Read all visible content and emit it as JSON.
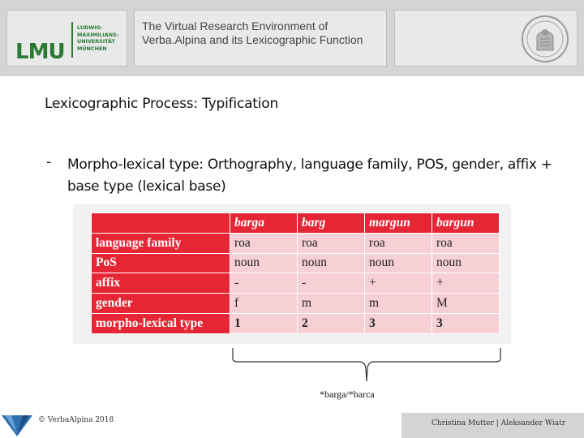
{
  "header": {
    "logo": {
      "mark": "LMU",
      "name_lines": [
        "LUDWIG-",
        "MAXIMILIANS-",
        "UNIVERSITÄT",
        "MÜNCHEN"
      ]
    },
    "title": "The Virtual Research Environment of Verba.Alpina and its Lexicographic Function",
    "seal_icon": "university-seal"
  },
  "slide": {
    "section_title": "Lexicographic Process: Typification",
    "bullet_marker": "-",
    "bullet_text": "Morpho-lexical type: Orthography, language family, POS, gender, affix + base type (lexical base)",
    "table": {
      "columns": [
        "barga",
        "barg",
        "margun",
        "bargun"
      ],
      "rows": [
        {
          "label": "language family",
          "cells": [
            "roa",
            "roa",
            "roa",
            "roa"
          ]
        },
        {
          "label": "PoS",
          "cells": [
            "noun",
            "noun",
            "noun",
            "noun"
          ]
        },
        {
          "label": "affix",
          "cells": [
            "-",
            "-",
            "+",
            "+"
          ]
        },
        {
          "label": "gender",
          "cells": [
            "f",
            "m",
            "m",
            "M"
          ]
        },
        {
          "label": "morpho-lexical type",
          "cells": [
            "1",
            "2",
            "3",
            "3"
          ]
        }
      ]
    },
    "footnote": "*barga/*barca"
  },
  "footer": {
    "left_text": "© VerbaAlpina 2018",
    "right_text": "Christina Mutter | Aleksander Wiatr",
    "logo_icon": "verba-alpina-logo"
  },
  "colors": {
    "accent_red": "#e62634",
    "cell_pink": "#f6d0d5",
    "lmu_green": "#2a7a34",
    "header_gray": "#d4d4d4"
  }
}
